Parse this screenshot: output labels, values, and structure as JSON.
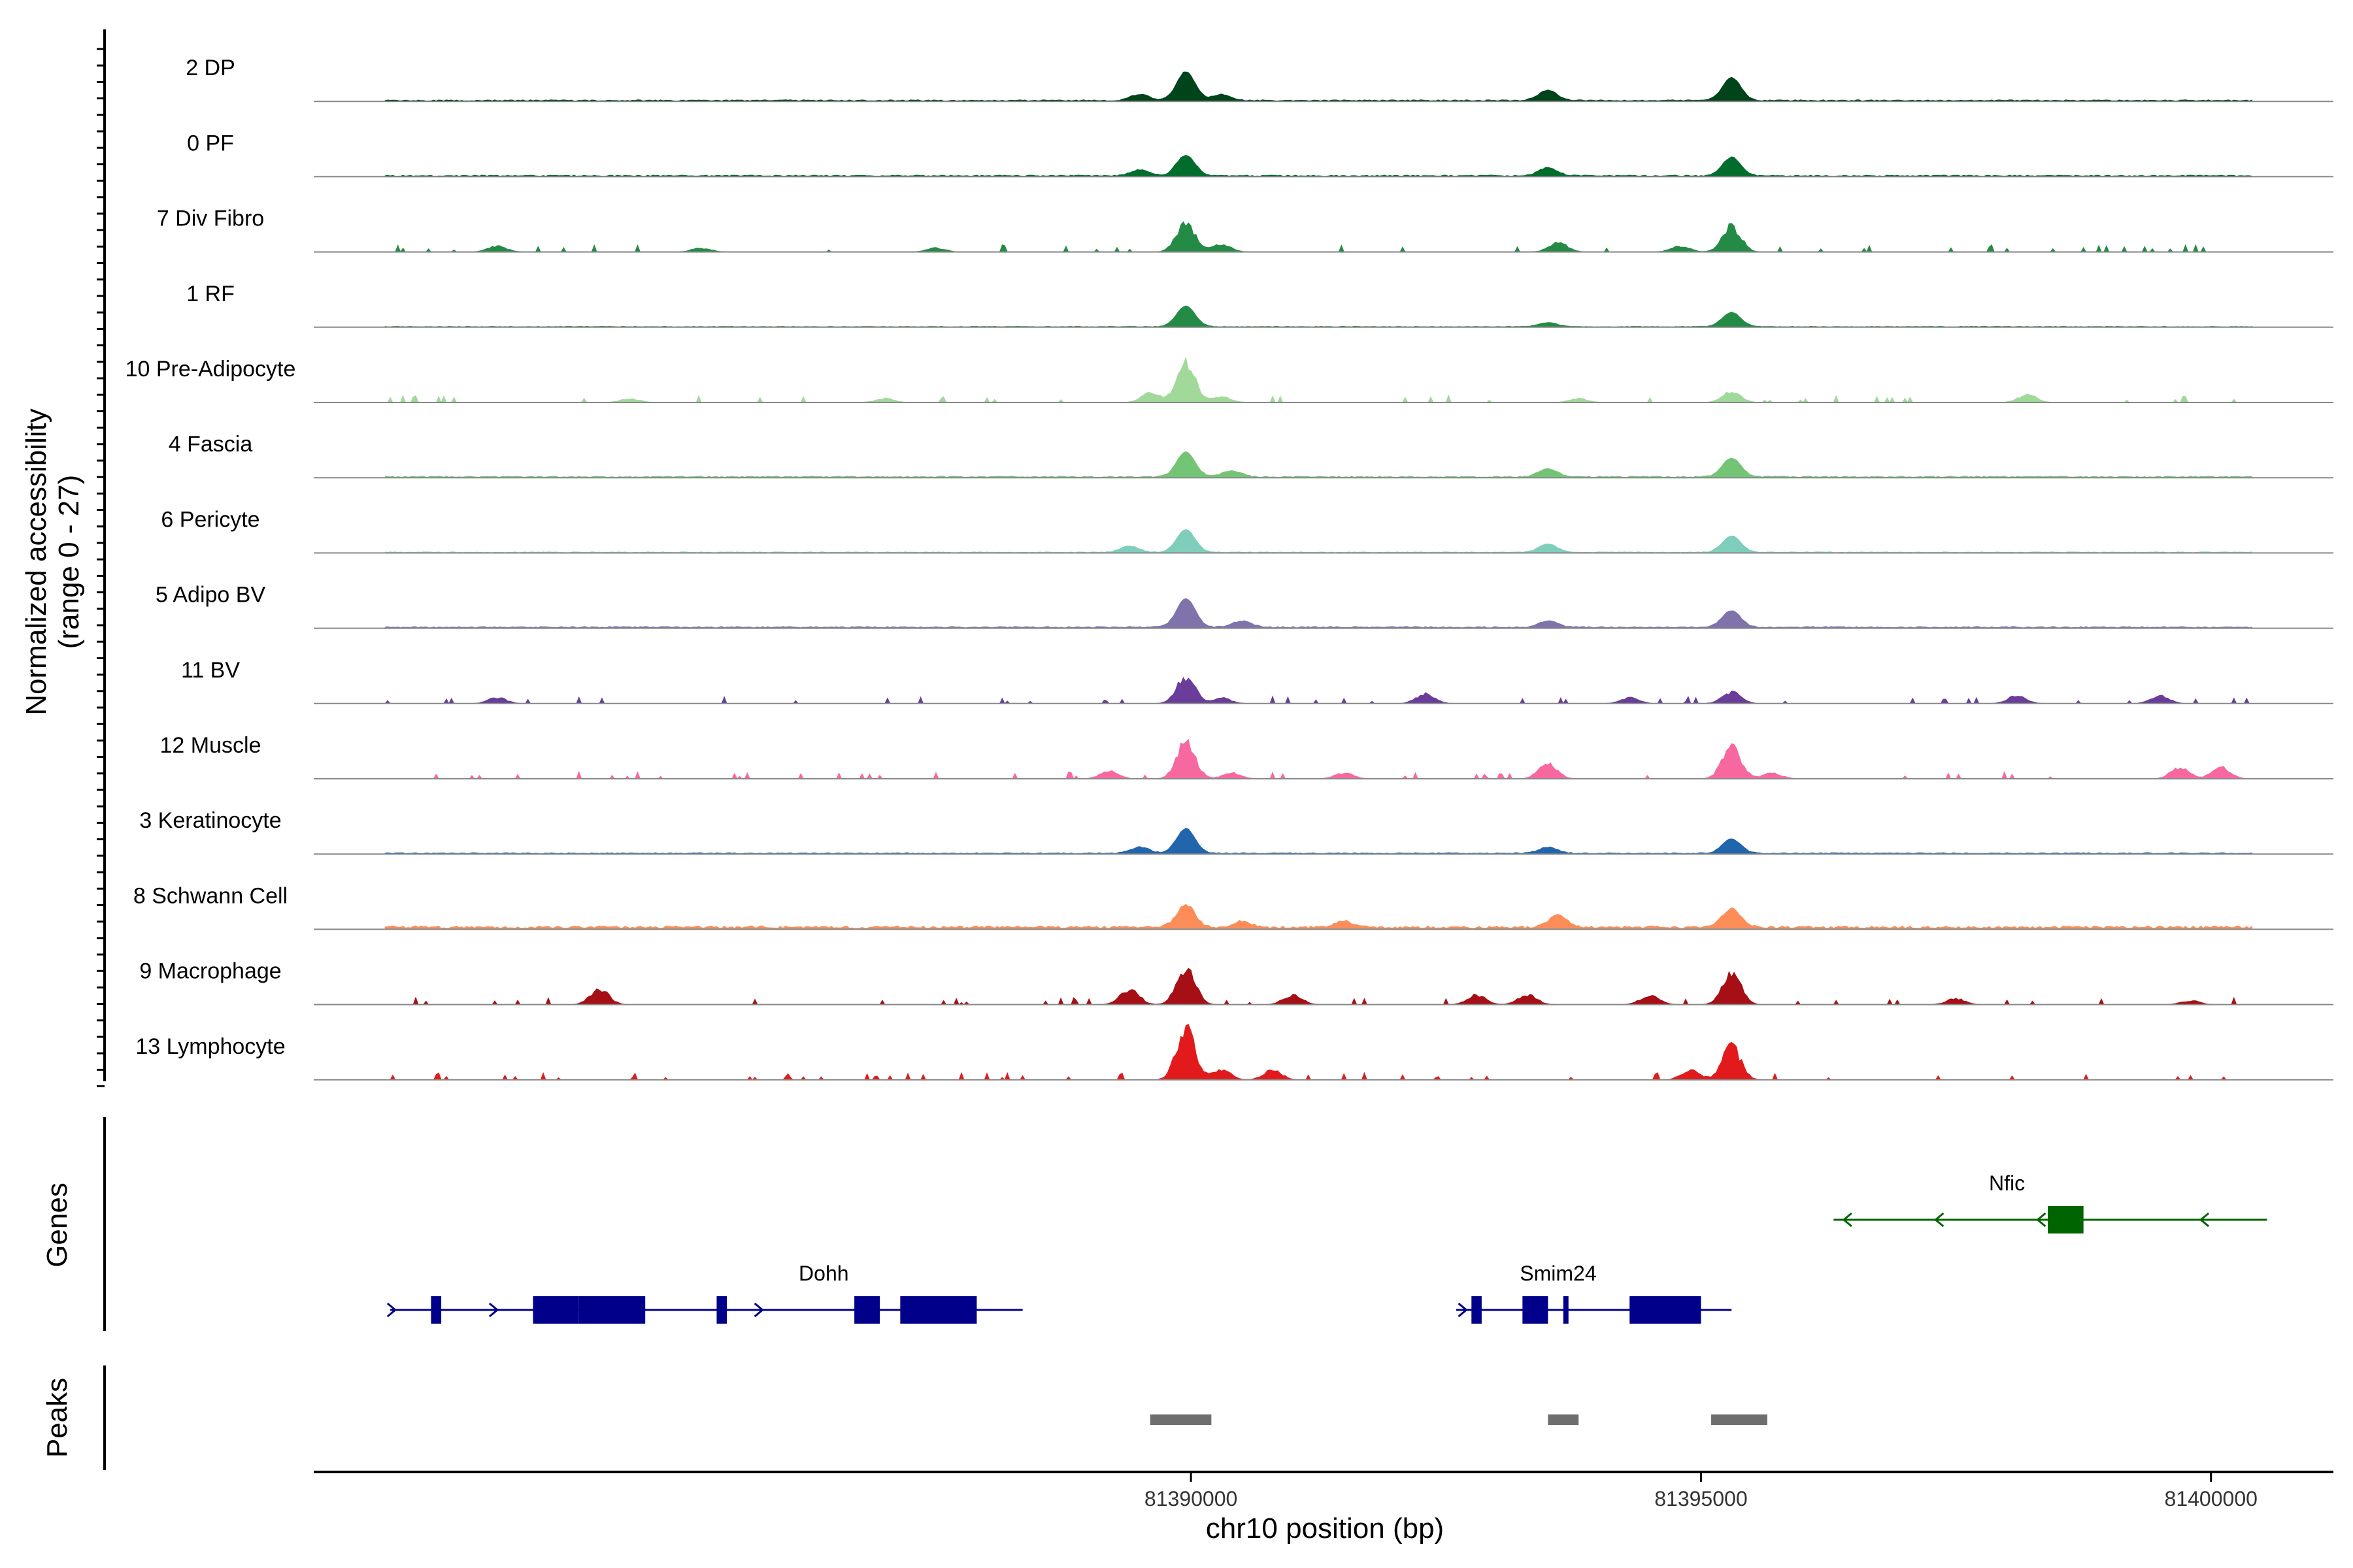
{
  "chart_data": {
    "type": "area",
    "chromosome": "chr10",
    "xlim": [
      81381400,
      81401200
    ],
    "xlabel": "chr10 position (bp)",
    "x_ticks": [
      81390000,
      81395000,
      81400000
    ],
    "x_tick_labels": [
      "81390000",
      "81395000",
      "81400000"
    ],
    "coverage_ylabel": "Normalized accessibility\n(range 0 - 27)",
    "ylim": [
      0,
      27
    ],
    "genes_label": "Genes",
    "peaks_label": "Peaks",
    "tracks": [
      {
        "name": "2 DP",
        "color": "#00441b",
        "mode": "continuous",
        "base": 0.7,
        "span": [
          81382100,
          81400400
        ],
        "peaks": [
          [
            81389950,
            14
          ],
          [
            81395300,
            11
          ],
          [
            81393500,
            5
          ],
          [
            81389500,
            3
          ],
          [
            81390300,
            3
          ]
        ]
      },
      {
        "name": "0 PF",
        "color": "#006d2c",
        "mode": "continuous",
        "base": 0.7,
        "span": [
          81382100,
          81400400
        ],
        "peaks": [
          [
            81389950,
            10
          ],
          [
            81395300,
            9
          ],
          [
            81393500,
            4
          ],
          [
            81389500,
            3
          ]
        ]
      },
      {
        "name": "7 Div Fibro",
        "color": "#238b45",
        "mode": "sparse",
        "base": 0,
        "span": [
          81382100,
          81400400
        ],
        "peaks": [
          [
            81389950,
            15
          ],
          [
            81395300,
            13
          ],
          [
            81393600,
            5
          ],
          [
            81390300,
            4
          ],
          [
            81383200,
            3
          ],
          [
            81385200,
            2
          ],
          [
            81387500,
            2
          ],
          [
            81394800,
            3
          ]
        ]
      },
      {
        "name": "1 RF",
        "color": "#238b45",
        "mode": "continuous",
        "base": 0.4,
        "span": [
          81382100,
          81400400
        ],
        "peaks": [
          [
            81389950,
            10
          ],
          [
            81395300,
            7
          ],
          [
            81393500,
            2
          ]
        ]
      },
      {
        "name": "10 Pre-Adipocyte",
        "color": "#a1d99b",
        "mode": "sparse",
        "base": 0,
        "span": [
          81382100,
          81400400
        ],
        "peaks": [
          [
            81389950,
            20
          ],
          [
            81395300,
            6
          ],
          [
            81398200,
            4
          ],
          [
            81389600,
            5
          ],
          [
            81390300,
            3
          ],
          [
            81384500,
            2
          ],
          [
            81387000,
            2
          ],
          [
            81393800,
            2
          ]
        ]
      },
      {
        "name": "4 Fascia",
        "color": "#74c476",
        "mode": "continuous",
        "base": 0.7,
        "span": [
          81382100,
          81400400
        ],
        "peaks": [
          [
            81389950,
            12
          ],
          [
            81395300,
            9
          ],
          [
            81393500,
            4
          ],
          [
            81390400,
            3
          ]
        ]
      },
      {
        "name": "6 Pericyte",
        "color": "#7fcdbb",
        "mode": "continuous",
        "base": 0.5,
        "span": [
          81382100,
          81400400
        ],
        "peaks": [
          [
            81389950,
            11
          ],
          [
            81395300,
            8
          ],
          [
            81393500,
            4
          ],
          [
            81389400,
            3
          ]
        ]
      },
      {
        "name": "5 Adipo BV",
        "color": "#8073ac",
        "mode": "continuous",
        "base": 0.8,
        "span": [
          81382100,
          81400400
        ],
        "peaks": [
          [
            81389950,
            14
          ],
          [
            81395300,
            8
          ],
          [
            81393500,
            3
          ],
          [
            81390500,
            3
          ]
        ]
      },
      {
        "name": "11 BV",
        "color": "#6a3d9a",
        "mode": "sparse",
        "base": 0,
        "span": [
          81382100,
          81400400
        ],
        "peaks": [
          [
            81389950,
            14
          ],
          [
            81395300,
            6
          ],
          [
            81392300,
            5
          ],
          [
            81398100,
            4
          ],
          [
            81399500,
            4
          ],
          [
            81390300,
            3
          ],
          [
            81383200,
            3
          ],
          [
            81394300,
            3
          ]
        ]
      },
      {
        "name": "12 Muscle",
        "color": "#f768a1",
        "mode": "sparse",
        "base": 0,
        "span": [
          81382100,
          81400400
        ],
        "peaks": [
          [
            81389950,
            19
          ],
          [
            81395300,
            17
          ],
          [
            81399700,
            6
          ],
          [
            81400100,
            6
          ],
          [
            81393500,
            8
          ],
          [
            81389200,
            4
          ],
          [
            81390400,
            3
          ],
          [
            81391500,
            3
          ],
          [
            81395700,
            3
          ]
        ]
      },
      {
        "name": "3 Keratinocyte",
        "color": "#2166ac",
        "mode": "continuous",
        "base": 0.6,
        "span": [
          81382100,
          81400400
        ],
        "peaks": [
          [
            81389950,
            12
          ],
          [
            81395300,
            7
          ],
          [
            81389500,
            3
          ],
          [
            81393500,
            3
          ]
        ]
      },
      {
        "name": "8 Schwann Cell",
        "color": "#fc8d59",
        "mode": "continuous",
        "base": 1.5,
        "span": [
          81382100,
          81400400
        ],
        "peaks": [
          [
            81389950,
            11
          ],
          [
            81395300,
            9
          ],
          [
            81393600,
            6
          ],
          [
            81390500,
            3
          ],
          [
            81391500,
            3
          ]
        ]
      },
      {
        "name": "9 Macrophage",
        "color": "#a50f15",
        "mode": "sparse",
        "base": 0,
        "span": [
          81382100,
          81400400
        ],
        "peaks": [
          [
            81389950,
            19
          ],
          [
            81395300,
            17
          ],
          [
            81384200,
            8
          ],
          [
            81389400,
            8
          ],
          [
            81391000,
            5
          ],
          [
            81392800,
            5
          ],
          [
            81393300,
            5
          ],
          [
            81394500,
            5
          ],
          [
            81397500,
            3
          ],
          [
            81399800,
            2
          ]
        ]
      },
      {
        "name": "13 Lymphocyte",
        "color": "#e31a1c",
        "mode": "sparse",
        "base": 0,
        "span": [
          81382100,
          81400400
        ],
        "peaks": [
          [
            81389950,
            27
          ],
          [
            81395300,
            17
          ],
          [
            81390300,
            5
          ],
          [
            81390800,
            5
          ],
          [
            81394900,
            5
          ]
        ]
      }
    ],
    "genes": [
      {
        "name": "Dohh",
        "strand": "+",
        "color": "#00008b",
        "row": 2,
        "label_pos": 81386400,
        "start": 81382150,
        "end": 81388350,
        "exons": [
          [
            81382550,
            81382650
          ],
          [
            81383550,
            81384000
          ],
          [
            81384000,
            81384650
          ],
          [
            81385350,
            81385450
          ],
          [
            81386700,
            81386950
          ],
          [
            81387150,
            81387900
          ]
        ],
        "arrows": [
          81382200,
          81383200,
          81385800
        ]
      },
      {
        "name": "Smim24",
        "strand": "+",
        "color": "#00008b",
        "row": 2,
        "label_pos": 81393600,
        "start": 81392600,
        "end": 81395300,
        "exons": [
          [
            81392750,
            81392850
          ],
          [
            81393250,
            81393500
          ],
          [
            81393650,
            81393700
          ],
          [
            81394300,
            81395000
          ]
        ],
        "arrows": [
          81392700,
          81393450
        ]
      },
      {
        "name": "Nfic",
        "strand": "-",
        "color": "#006400",
        "row": 1,
        "label_pos": 81398000,
        "start": 81396300,
        "end": 81400550,
        "exons": [
          [
            81398400,
            81398750
          ]
        ],
        "arrows": [
          81396400,
          81397300,
          81398300,
          81399900
        ]
      }
    ],
    "peaks": [
      [
        81389600,
        81390200
      ],
      [
        81393500,
        81393800
      ],
      [
        81395100,
        81395650
      ]
    ]
  }
}
